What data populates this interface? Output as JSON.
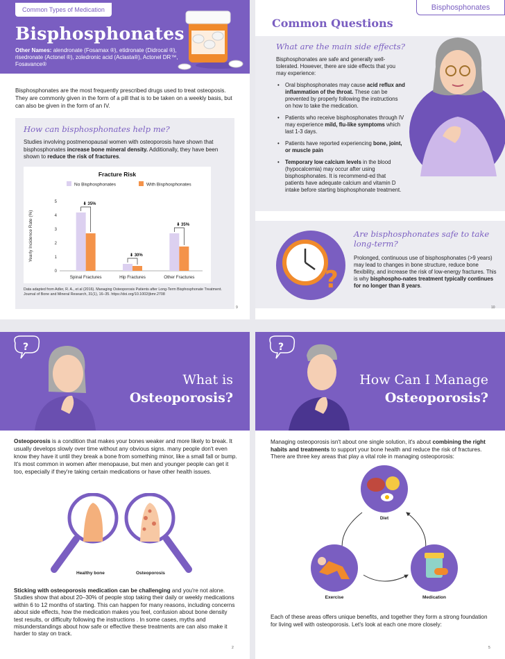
{
  "page9": {
    "tag": "Common Types of Medication",
    "title": "Bisphosphonates",
    "names_label": "Other Names:",
    "names": " alendronate (Fosamax ®), etidronate (Didrocal ®), risedronate (Actonel ®), zoledronic acid (Aclasta®), Actonel DR™, Fosavance®",
    "intro": "Bisphosphonates are the most frequently prescribed drugs used to treat osteoposis. They are commonly given in the form of a pill that is to be taken on a weekly basis, but can also be given in the form of an IV.",
    "help_heading": "How can bisphosphonates help me?",
    "help_text_1": "Studies involving postmenopausal women with osteoporosis have shown that bisphosphonates ",
    "help_bold_1": "increase bone mineral density.",
    "help_text_2": " Additionally, they have been shown to ",
    "help_bold_2": "reduce the risk of fractures",
    "help_text_3": ".",
    "citation": "Data adapted from Adler, R. A., et al (2016). Managing Osteoporosis Patients after Long-Term Bisphosphonate Treatment. Journal of Bone and Mineral Research, 31(1), 16–35. https://doi.org/10.1002/jbmr.2708",
    "page_number": "9"
  },
  "chart_data": {
    "type": "bar",
    "title": "Fracture Risk",
    "ylabel": "Yearly Incidence Rate (%)",
    "xlabel": "",
    "ylim": [
      0,
      5
    ],
    "yticks": [
      "0",
      "1",
      "2",
      "3",
      "4",
      "5"
    ],
    "categories": [
      "Spinal Fractures",
      "Hip Fractures",
      "Other Fractures"
    ],
    "series": [
      {
        "name": "No Bisphosphonates",
        "values": [
          4.2,
          0.5,
          2.7
        ],
        "color": "#dcd0f0"
      },
      {
        "name": "With Bisphosphonates",
        "values": [
          2.7,
          0.35,
          1.75
        ],
        "color": "#f4934a"
      }
    ],
    "annotations": [
      "35%",
      "30%",
      "35%"
    ],
    "legend": "top"
  },
  "page10": {
    "tag": "Bisphosphonates",
    "heading": "Common Questions",
    "q1": "What are the main side effects?",
    "q1_intro": "Bisphosphonates are safe and generally well-tolerated. However, there are side effects that you may experience:",
    "b1_pre": "Oral bisphosphonates may cause ",
    "b1_bold": "acid reflux and inflammation of the throat.",
    "b1_post": " These can be prevented by properly following the instructions on how to take the medication.",
    "b2_pre": "Patients who receive bisphosphonates through IV may experience ",
    "b2_bold": "mild, flu-like symptoms",
    "b2_post": " which last 1-3 days.",
    "b3_pre": "Patients have reported experiencing ",
    "b3_bold": "bone, joint, or muscle pain",
    "b4_bold": "Temporary low calcium levels",
    "b4_post": " in the blood (hypocalcemia) may occur after using bisphosphonates. It is recommend-ed that patients have adequate calcium and vitamin D intake before starting bisphosphonate treatment.",
    "q2": "Are bisphosphonates safe to take long-term?",
    "q2_text": "Prolonged, continuous use of bisphosphonates (>9 years) may lead to changes in bone structure, reduce bone flexibility, and increase the risk of low-energy fractures. This is why ",
    "q2_bold": "bisphospho-nates treatment typically continues for no longer than 8 years",
    "q2_end": ".",
    "page_number": "10"
  },
  "page2": {
    "title_1": "What is",
    "title_2": "Osteoporosis?",
    "bubble": "?",
    "p1_bold": "Osteoporosis",
    "p1": " is a condition that makes your bones weaker and more likely to break. It usually develops slowly over time without any obvious signs. many people don't even know they have it until they break a bone from something minor, like a small fall or bump. It's most common in women after menopause, but men and younger people can get it too, especially if they're taking certain medications or have other health issues.",
    "label_healthy": "Healthy bone",
    "label_osteo": "Osteoporosis",
    "p2_bold": "Sticking with osteoporosis medication can be challenging",
    "p2": " and you're not alone. Studies show that about 20–30% of people stop taking their daily or weekly medications within 6 to 12 months of starting. This can happen for many reasons, including concerns about side effects, how the medication makes you feel, confusion about bone density test results, or difficulty following the instructions . In some cases, myths and misunderstandings about how safe or effective these treatments are can also make it harder to stay on track.",
    "page_number": "2"
  },
  "page5": {
    "title_1": "How Can I Manage",
    "title_2": "Osteoporosis?",
    "bubble": "?",
    "p1_a": "Managing osteoporosis isn't about one single solution, it's about ",
    "p1_bold": "combining the right habits and treatments",
    "p1_b": " to support your bone health and reduce the risk of fractures. There are three key areas that play a vital role in managing osteoporosis:",
    "diet": "Diet",
    "exercise": "Exercise",
    "medication": "Medication",
    "p2": "Each of these areas offers unique benefits, and together they form a strong foundation for living well with osteoporosis. Let's look at each one more closely:",
    "page_number": "5"
  }
}
